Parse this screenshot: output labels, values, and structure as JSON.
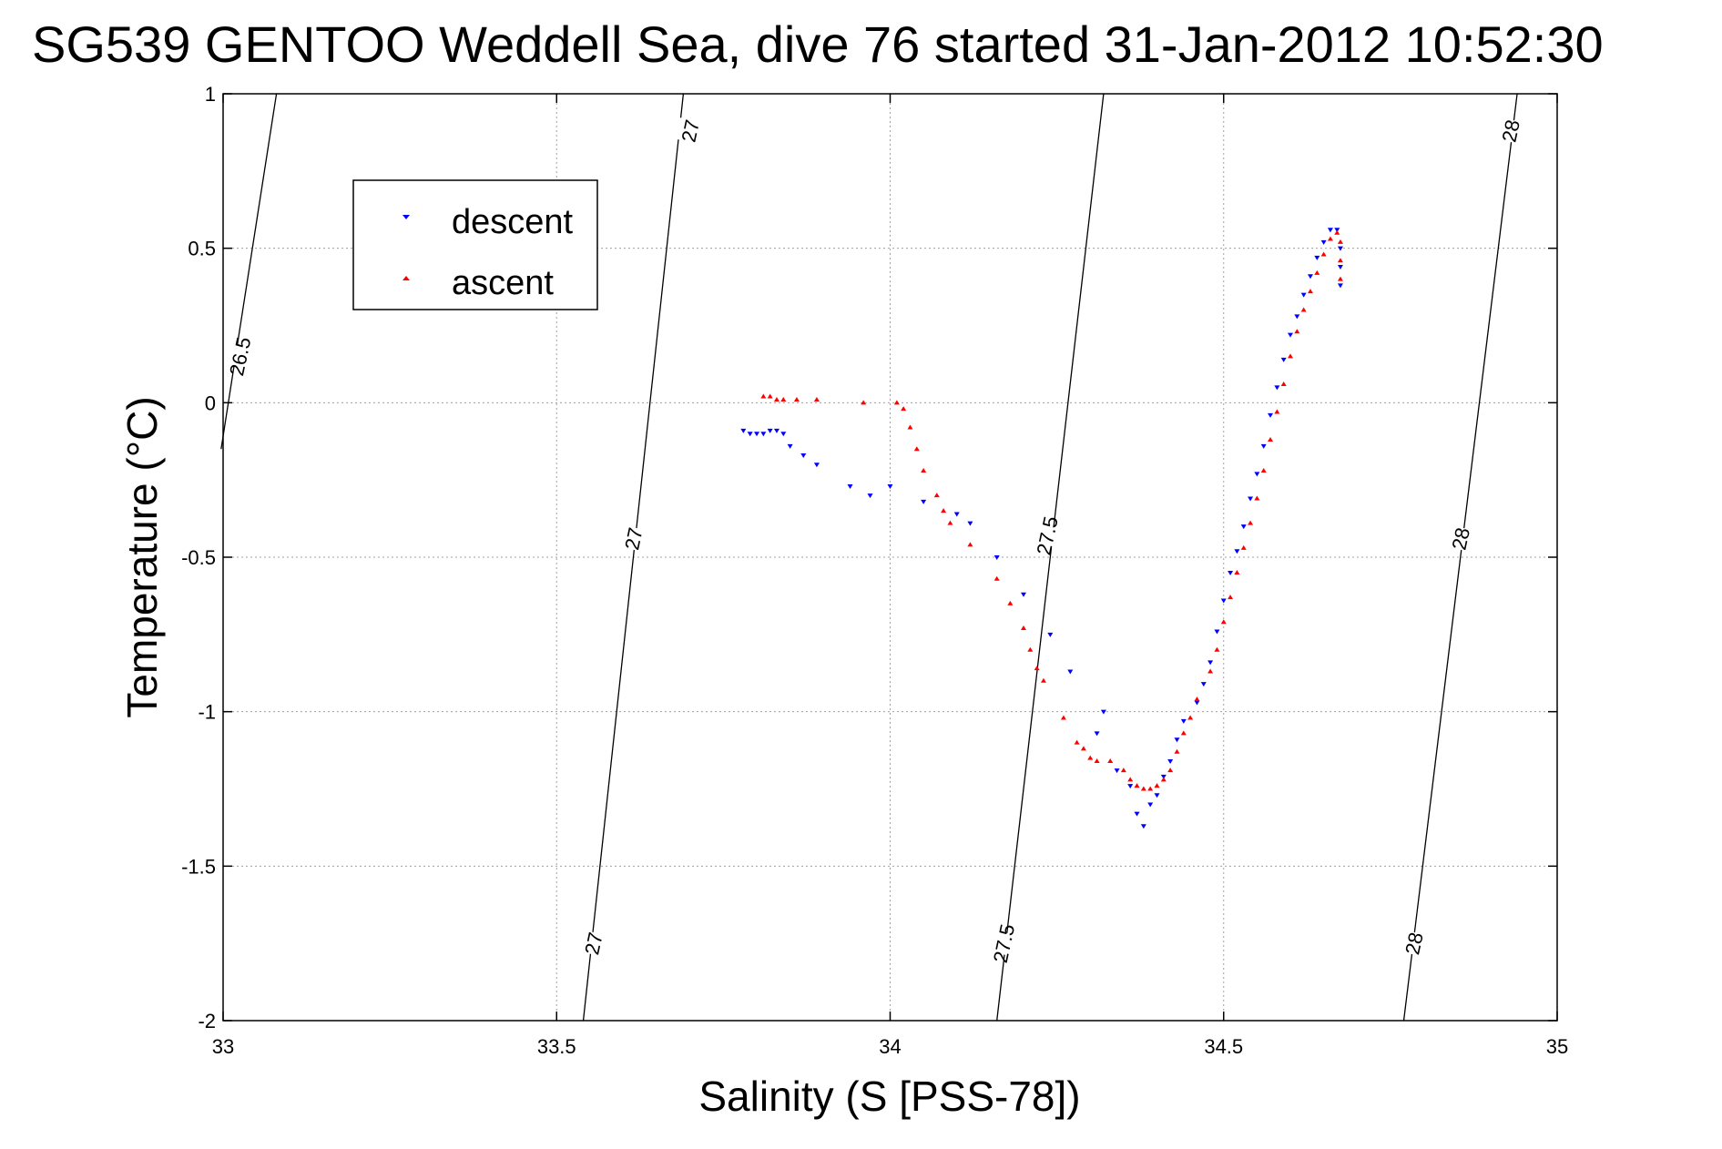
{
  "chart_data": {
    "type": "scatter",
    "title": "SG539 GENTOO Weddell Sea, dive 76 started 31-Jan-2012 10:52:30",
    "xlabel": "Salinity (S [PSS-78])",
    "ylabel": "Temperature (°C)",
    "xlim": [
      33,
      35
    ],
    "ylim": [
      -2,
      1
    ],
    "xticks": [
      33,
      33.5,
      34,
      34.5,
      35
    ],
    "xtick_labels": [
      "33",
      "33.5",
      "34",
      "34.5",
      "35"
    ],
    "yticks": [
      -2,
      -1.5,
      -1,
      -0.5,
      0,
      0.5,
      1
    ],
    "ytick_labels": [
      "-2",
      "-1.5",
      "-1",
      "-0.5",
      "0",
      "0.5",
      "1"
    ],
    "grid": true,
    "legend_position": "top-left",
    "colors": {
      "descent": "#0000ff",
      "ascent": "#ff0000",
      "contour": "#000000"
    },
    "contours": [
      {
        "label": "26.5",
        "points": [
          [
            32.997,
            -0.15
          ],
          [
            33.08,
            1.0
          ]
        ]
      },
      {
        "label": "27",
        "points": [
          [
            33.54,
            -2.0
          ],
          [
            33.69,
            1.0
          ]
        ]
      },
      {
        "label": "27.5",
        "points": [
          [
            34.16,
            -2.0
          ],
          [
            34.32,
            1.0
          ]
        ]
      },
      {
        "label": "28",
        "points": [
          [
            34.77,
            -2.0
          ],
          [
            34.94,
            1.0
          ]
        ]
      }
    ],
    "contour_labels": [
      {
        "text": "26.5",
        "x": 33.025,
        "y": 0.15
      },
      {
        "text": "27",
        "x": 33.7,
        "y": 0.88
      },
      {
        "text": "27",
        "x": 33.615,
        "y": -0.44
      },
      {
        "text": "27",
        "x": 33.555,
        "y": -1.75
      },
      {
        "text": "27.5",
        "x": 34.235,
        "y": -0.43
      },
      {
        "text": "27.5",
        "x": 34.17,
        "y": -1.75
      },
      {
        "text": "28",
        "x": 34.93,
        "y": 0.88
      },
      {
        "text": "28",
        "x": 34.855,
        "y": -0.44
      },
      {
        "text": "28",
        "x": 34.785,
        "y": -1.75
      }
    ],
    "series": [
      {
        "name": "descent",
        "marker": "triangle-down",
        "points": [
          [
            33.78,
            -0.09
          ],
          [
            33.79,
            -0.1
          ],
          [
            33.8,
            -0.1
          ],
          [
            33.81,
            -0.1
          ],
          [
            33.82,
            -0.09
          ],
          [
            33.83,
            -0.09
          ],
          [
            33.84,
            -0.1
          ],
          [
            33.85,
            -0.14
          ],
          [
            33.87,
            -0.17
          ],
          [
            33.89,
            -0.2
          ],
          [
            33.94,
            -0.27
          ],
          [
            33.97,
            -0.3
          ],
          [
            34.0,
            -0.27
          ],
          [
            34.05,
            -0.32
          ],
          [
            34.1,
            -0.36
          ],
          [
            34.12,
            -0.39
          ],
          [
            34.16,
            -0.5
          ],
          [
            34.2,
            -0.62
          ],
          [
            34.24,
            -0.75
          ],
          [
            34.27,
            -0.87
          ],
          [
            34.31,
            -1.07
          ],
          [
            34.32,
            -1.0
          ],
          [
            34.34,
            -1.19
          ],
          [
            34.36,
            -1.24
          ],
          [
            34.37,
            -1.33
          ],
          [
            34.38,
            -1.37
          ],
          [
            34.39,
            -1.3
          ],
          [
            34.4,
            -1.27
          ],
          [
            34.41,
            -1.21
          ],
          [
            34.42,
            -1.16
          ],
          [
            34.43,
            -1.09
          ],
          [
            34.44,
            -1.03
          ],
          [
            34.46,
            -0.97
          ],
          [
            34.47,
            -0.91
          ],
          [
            34.48,
            -0.84
          ],
          [
            34.49,
            -0.74
          ],
          [
            34.5,
            -0.64
          ],
          [
            34.51,
            -0.55
          ],
          [
            34.52,
            -0.48
          ],
          [
            34.53,
            -0.4
          ],
          [
            34.54,
            -0.31
          ],
          [
            34.55,
            -0.23
          ],
          [
            34.56,
            -0.14
          ],
          [
            34.57,
            -0.04
          ],
          [
            34.58,
            0.05
          ],
          [
            34.59,
            0.14
          ],
          [
            34.6,
            0.22
          ],
          [
            34.61,
            0.28
          ],
          [
            34.62,
            0.35
          ],
          [
            34.63,
            0.41
          ],
          [
            34.64,
            0.47
          ],
          [
            34.65,
            0.52
          ],
          [
            34.66,
            0.56
          ],
          [
            34.67,
            0.56
          ],
          [
            34.675,
            0.5
          ],
          [
            34.675,
            0.44
          ],
          [
            34.675,
            0.38
          ]
        ]
      },
      {
        "name": "ascent",
        "marker": "triangle-up",
        "points": [
          [
            33.81,
            0.02
          ],
          [
            33.82,
            0.02
          ],
          [
            33.83,
            0.01
          ],
          [
            33.84,
            0.01
          ],
          [
            33.86,
            0.01
          ],
          [
            33.89,
            0.01
          ],
          [
            33.96,
            0.0
          ],
          [
            34.01,
            0.0
          ],
          [
            34.02,
            -0.02
          ],
          [
            34.03,
            -0.08
          ],
          [
            34.04,
            -0.15
          ],
          [
            34.05,
            -0.22
          ],
          [
            34.07,
            -0.3
          ],
          [
            34.08,
            -0.35
          ],
          [
            34.09,
            -0.39
          ],
          [
            34.12,
            -0.46
          ],
          [
            34.16,
            -0.57
          ],
          [
            34.18,
            -0.65
          ],
          [
            34.2,
            -0.73
          ],
          [
            34.21,
            -0.8
          ],
          [
            34.22,
            -0.86
          ],
          [
            34.23,
            -0.9
          ],
          [
            34.26,
            -1.02
          ],
          [
            34.28,
            -1.1
          ],
          [
            34.29,
            -1.12
          ],
          [
            34.3,
            -1.15
          ],
          [
            34.31,
            -1.16
          ],
          [
            34.33,
            -1.16
          ],
          [
            34.35,
            -1.19
          ],
          [
            34.36,
            -1.22
          ],
          [
            34.37,
            -1.24
          ],
          [
            34.38,
            -1.25
          ],
          [
            34.39,
            -1.25
          ],
          [
            34.4,
            -1.24
          ],
          [
            34.41,
            -1.22
          ],
          [
            34.42,
            -1.19
          ],
          [
            34.43,
            -1.13
          ],
          [
            34.44,
            -1.07
          ],
          [
            34.45,
            -1.02
          ],
          [
            34.46,
            -0.96
          ],
          [
            34.48,
            -0.87
          ],
          [
            34.49,
            -0.8
          ],
          [
            34.5,
            -0.71
          ],
          [
            34.51,
            -0.63
          ],
          [
            34.52,
            -0.55
          ],
          [
            34.53,
            -0.47
          ],
          [
            34.54,
            -0.39
          ],
          [
            34.55,
            -0.31
          ],
          [
            34.56,
            -0.22
          ],
          [
            34.57,
            -0.12
          ],
          [
            34.58,
            -0.03
          ],
          [
            34.59,
            0.06
          ],
          [
            34.6,
            0.15
          ],
          [
            34.61,
            0.23
          ],
          [
            34.62,
            0.3
          ],
          [
            34.63,
            0.36
          ],
          [
            34.64,
            0.42
          ],
          [
            34.65,
            0.48
          ],
          [
            34.66,
            0.53
          ],
          [
            34.67,
            0.55
          ],
          [
            34.675,
            0.52
          ],
          [
            34.675,
            0.46
          ],
          [
            34.675,
            0.4
          ]
        ]
      }
    ]
  }
}
